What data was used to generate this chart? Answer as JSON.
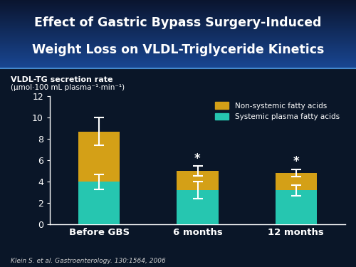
{
  "title_line1": "Effect of Gastric Bypass Surgery-Induced",
  "title_line2": "Weight Loss on VLDL-Triglyceride Kinetics",
  "ylabel_line1": "VLDL-TG secretion rate",
  "ylabel_line2": "(μmol·100 mL plasma⁻¹·min⁻¹)",
  "categories": [
    "Before GBS",
    "6 months",
    "12 months"
  ],
  "systemic_values": [
    4.0,
    3.2,
    3.2
  ],
  "nonsystemic_values": [
    4.7,
    1.8,
    1.6
  ],
  "systemic_errors": [
    0.7,
    0.8,
    0.5
  ],
  "total_errors": [
    1.3,
    0.45,
    0.35
  ],
  "systemic_color": "#26C6B0",
  "nonsystemic_color": "#D4A017",
  "title_bg_top": "#0A1628",
  "title_bg_mid": "#1A4080",
  "plot_bg_color": "#0A1628",
  "text_color": "#FFFFFF",
  "legend_nonsystemic": "Non-systemic fatty acids",
  "legend_systemic": "Systemic plasma fatty acids",
  "ylim": [
    0,
    12
  ],
  "yticks": [
    0,
    2,
    4,
    6,
    8,
    10,
    12
  ],
  "citation": "Klein S. et al. Gastroenterology. 130:1564, 2006",
  "significance_markers": [
    false,
    true,
    true
  ],
  "title_fontsize": 12.5,
  "bar_width": 0.42
}
